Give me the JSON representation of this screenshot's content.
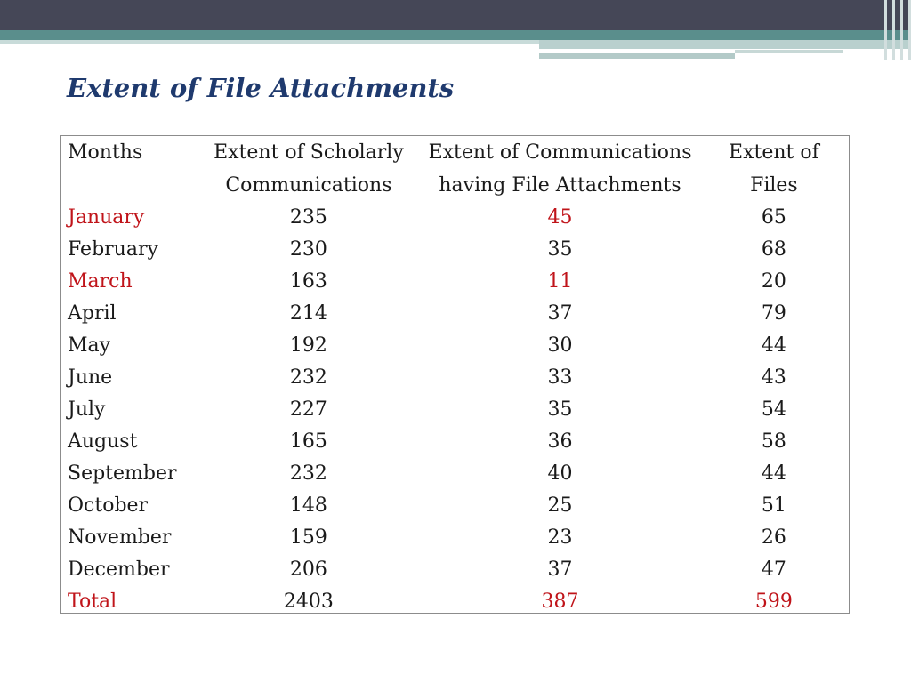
{
  "title": "Extent of File Attachments",
  "colors": {
    "title": "#1f3a6e",
    "highlight": "#c0141a",
    "banner_dark": "#454757",
    "banner_teal": "#5a8e8c"
  },
  "table": {
    "headers": {
      "months": "Months",
      "scholarly_line1": "Extent of Scholarly",
      "scholarly_line2": "Communications",
      "attachments_line1": "Extent of Communications",
      "attachments_line2": "having File Attachments",
      "files_line1": "Extent of",
      "files_line2": "Files"
    },
    "rows": [
      {
        "month": "January",
        "scholarly": "235",
        "attachments": "45",
        "files": "65"
      },
      {
        "month": "February",
        "scholarly": "230",
        "attachments": "35",
        "files": "68"
      },
      {
        "month": "March",
        "scholarly": "163",
        "attachments": "11",
        "files": "20"
      },
      {
        "month": "April",
        "scholarly": "214",
        "attachments": "37",
        "files": "79"
      },
      {
        "month": "May",
        "scholarly": "192",
        "attachments": "30",
        "files": "44"
      },
      {
        "month": "June",
        "scholarly": "232",
        "attachments": "33",
        "files": "43"
      },
      {
        "month": "July",
        "scholarly": "227",
        "attachments": "35",
        "files": "54"
      },
      {
        "month": "August",
        "scholarly": "165",
        "attachments": "36",
        "files": "58"
      },
      {
        "month": "September",
        "scholarly": "232",
        "attachments": "40",
        "files": "44"
      },
      {
        "month": "October",
        "scholarly": "148",
        "attachments": "25",
        "files": "51"
      },
      {
        "month": "November",
        "scholarly": "159",
        "attachments": "23",
        "files": "26"
      },
      {
        "month": "December",
        "scholarly": "206",
        "attachments": "37",
        "files": "47"
      }
    ],
    "total": {
      "month": "Total",
      "scholarly": "2403",
      "attachments": "387",
      "files": "599"
    }
  }
}
